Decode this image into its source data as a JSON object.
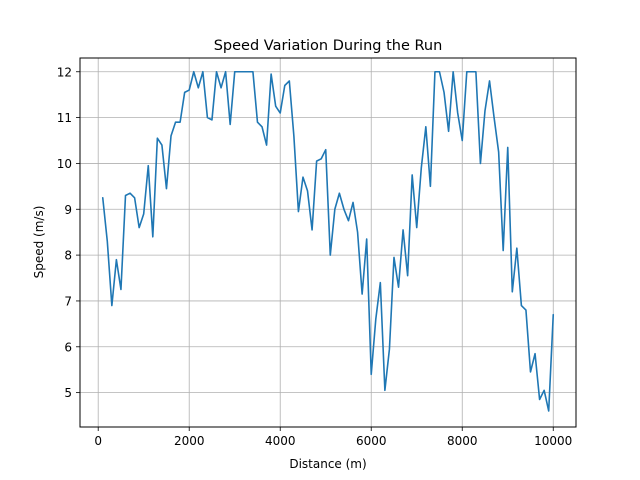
{
  "chart_data": {
    "type": "line",
    "title": "Speed Variation During the Run",
    "xlabel": "Distance (m)",
    "ylabel": "Speed (m/s)",
    "xlim": [
      -400,
      10500
    ],
    "ylim": [
      4.25,
      12.3
    ],
    "grid": true,
    "colors": {
      "line": "#1f77b4",
      "grid": "#b0b0b0"
    },
    "x_ticks": [
      0,
      2000,
      4000,
      6000,
      8000,
      10000
    ],
    "y_ticks": [
      5,
      6,
      7,
      8,
      9,
      10,
      11,
      12
    ],
    "x_tick_labels": [
      "0",
      "2000",
      "4000",
      "6000",
      "8000",
      "10000"
    ],
    "y_tick_labels": [
      "5",
      "6",
      "7",
      "8",
      "9",
      "10",
      "11",
      "12"
    ],
    "series": [
      {
        "x": [
          100,
          200,
          300,
          400,
          500,
          600,
          700,
          800,
          900,
          1000,
          1100,
          1200,
          1300,
          1400,
          1500,
          1600,
          1700,
          1800,
          1900,
          2000,
          2100,
          2200,
          2300,
          2400,
          2500,
          2600,
          2700,
          2800,
          2900,
          3000,
          3100,
          3200,
          3300,
          3400,
          3500,
          3600,
          3700,
          3800,
          3900,
          4000,
          4100,
          4200,
          4300,
          4400,
          4500,
          4600,
          4700,
          4800,
          4900,
          5000,
          5100,
          5200,
          5300,
          5400,
          5500,
          5600,
          5700,
          5800,
          5900,
          6000,
          6100,
          6200,
          6300,
          6400,
          6500,
          6600,
          6700,
          6800,
          6900,
          7000,
          7100,
          7200,
          7300,
          7400,
          7500,
          7600,
          7700,
          7800,
          7900,
          8000,
          8100,
          8200,
          8300,
          8400,
          8500,
          8600,
          8700,
          8800,
          8900,
          9000,
          9100,
          9200,
          9300,
          9400,
          9500,
          9600,
          9700,
          9800,
          9900,
          10000
        ],
        "values": [
          9.25,
          8.3,
          6.9,
          7.9,
          7.25,
          9.3,
          9.35,
          9.25,
          8.6,
          8.9,
          9.95,
          8.4,
          10.55,
          10.4,
          9.45,
          10.6,
          10.9,
          10.9,
          11.55,
          11.6,
          12.0,
          11.65,
          12.0,
          11.0,
          10.95,
          12.0,
          11.65,
          12.0,
          10.85,
          12.0,
          12.0,
          12.0,
          12.0,
          12.0,
          10.9,
          10.8,
          10.4,
          11.95,
          11.25,
          11.1,
          11.7,
          11.8,
          10.6,
          8.95,
          9.7,
          9.4,
          8.55,
          10.05,
          10.1,
          10.3,
          8.0,
          9.0,
          9.35,
          9.0,
          8.75,
          9.15,
          8.5,
          7.15,
          8.35,
          5.4,
          6.6,
          7.4,
          5.05,
          5.95,
          7.95,
          7.3,
          8.55,
          7.55,
          9.75,
          8.6,
          9.9,
          10.8,
          9.5,
          12.0,
          12.0,
          11.55,
          10.7,
          12.0,
          11.1,
          10.5,
          12.0,
          12.0,
          12.0,
          10.0,
          11.15,
          11.8,
          11.0,
          10.25,
          8.1,
          10.35,
          7.2,
          8.15,
          6.9,
          6.8,
          5.45,
          5.85,
          4.85,
          5.05,
          4.6,
          6.7
        ]
      }
    ]
  }
}
